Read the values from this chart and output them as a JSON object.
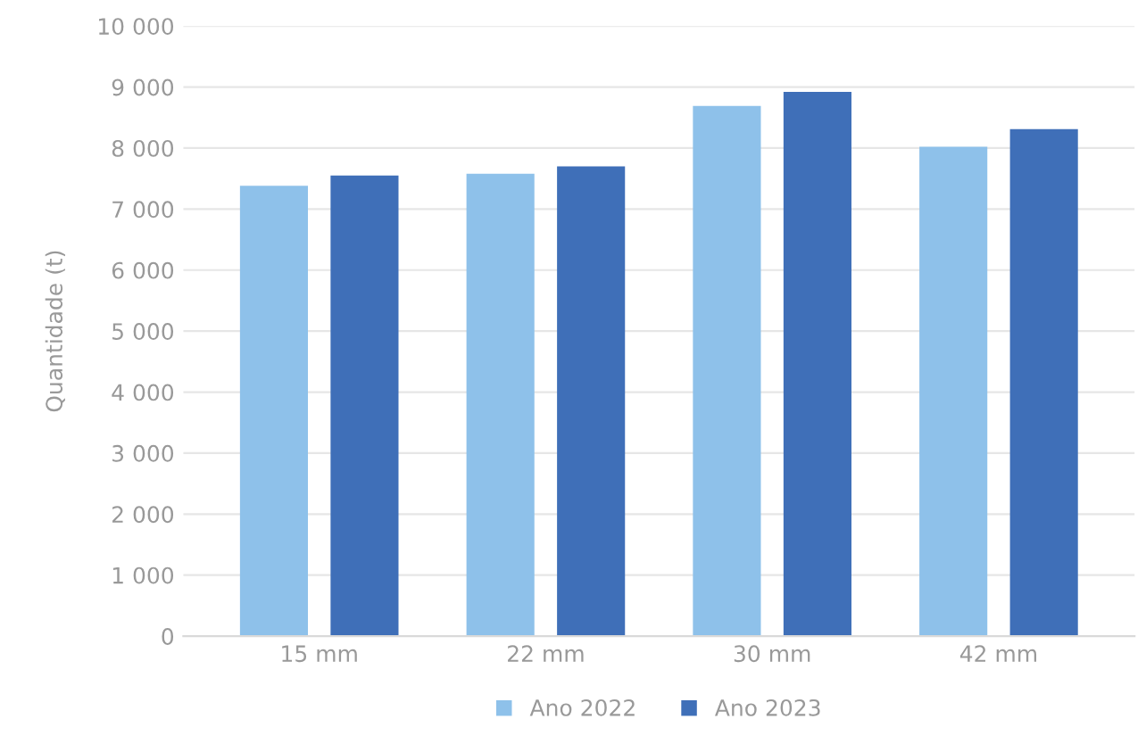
{
  "chart_data": {
    "type": "bar",
    "ylabel": "Quantidade (t)",
    "categories": [
      "15 mm",
      "22 mm",
      "30 mm",
      "42 mm"
    ],
    "series": [
      {
        "name": "Ano 2022",
        "color": "#8ec1ea",
        "values": [
          7380,
          7580,
          8690,
          8020
        ]
      },
      {
        "name": "Ano 2023",
        "color": "#3f6fb8",
        "values": [
          7550,
          7700,
          8920,
          8310
        ]
      }
    ],
    "ylim": [
      0,
      10000
    ],
    "yticks": [
      {
        "value": 0,
        "label": "0"
      },
      {
        "value": 1000,
        "label": "1 000"
      },
      {
        "value": 2000,
        "label": "2 000"
      },
      {
        "value": 3000,
        "label": "3 000"
      },
      {
        "value": 4000,
        "label": "4 000"
      },
      {
        "value": 5000,
        "label": "5 000"
      },
      {
        "value": 6000,
        "label": "6 000"
      },
      {
        "value": 7000,
        "label": "7 000"
      },
      {
        "value": 8000,
        "label": "8 000"
      },
      {
        "value": 9000,
        "label": "9 000"
      },
      {
        "value": 10000,
        "label": "10 000"
      }
    ],
    "grid": "y",
    "legend": "bottom"
  }
}
